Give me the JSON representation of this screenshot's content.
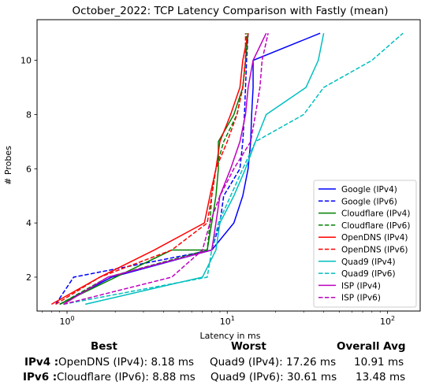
{
  "chart_data": {
    "type": "line",
    "title": "October_2022: TCP Latency Comparison with Fastly (mean)",
    "xlabel": "Latency in ms",
    "ylabel": "# Probes",
    "xscale": "log",
    "xlim": [
      0.65,
      160
    ],
    "ylim": [
      0.75,
      11.5
    ],
    "x_ticks": [
      {
        "value": 1,
        "label": "10^0"
      },
      {
        "value": 10,
        "label": "10^1"
      },
      {
        "value": 100,
        "label": "10^2"
      }
    ],
    "y_ticks": [
      2,
      4,
      6,
      8,
      10
    ],
    "legend_position": "lower-right",
    "grid": false,
    "series": [
      {
        "name": "Google (IPv4)",
        "color": "#0000ff",
        "dash": "solid",
        "x": [
          0.9,
          1.9,
          8.0,
          11.0,
          12.5,
          13.5,
          14.0,
          14.2,
          14.5,
          14.5,
          38.0
        ],
        "y": [
          1,
          2,
          3,
          4,
          5,
          6,
          7,
          8,
          9,
          10,
          11
        ]
      },
      {
        "name": "Google (IPv6)",
        "color": "#0000ff",
        "dash": "dashed",
        "x": [
          0.85,
          1.1,
          8.0,
          9.0,
          9.5,
          12.0,
          12.5,
          12.8,
          13.0,
          13.2,
          13.5
        ],
        "y": [
          1,
          2,
          3,
          4,
          5,
          6,
          7,
          8,
          9,
          10,
          11
        ]
      },
      {
        "name": "Cloudflare (IPv4)",
        "color": "#008000",
        "dash": "solid",
        "x": [
          0.9,
          4.5,
          7.5,
          8.0,
          8.5,
          8.8,
          8.8,
          11.0,
          12.5,
          13.0,
          13.5
        ],
        "y": [
          1,
          3,
          3,
          4,
          5,
          6,
          7,
          8,
          9,
          10,
          11
        ]
      },
      {
        "name": "Cloudflare (IPv6)",
        "color": "#008000",
        "dash": "dashed",
        "x": [
          0.9,
          1.8,
          7.5,
          7.8,
          8.0,
          8.5,
          9.5,
          11.5,
          12.5,
          13.0,
          13.2
        ],
        "y": [
          1,
          2,
          3,
          4,
          5,
          6,
          7,
          8,
          9,
          10,
          11
        ]
      },
      {
        "name": "OpenDNS (IPv4)",
        "color": "#ff0000",
        "dash": "solid",
        "x": [
          0.8,
          1.6,
          3.5,
          7.2,
          7.8,
          8.5,
          9.0,
          10.5,
          12.0,
          12.5,
          13.5
        ],
        "y": [
          1,
          2,
          3,
          4,
          5,
          6,
          7,
          8,
          9,
          10,
          11
        ]
      },
      {
        "name": "OpenDNS (IPv6)",
        "color": "#ff0000",
        "dash": "dashed",
        "x": [
          0.85,
          1.6,
          4.5,
          7.5,
          8.0,
          8.5,
          10.0,
          11.5,
          12.5,
          13.0,
          13.0
        ],
        "y": [
          1,
          2,
          3,
          4,
          5,
          6,
          7,
          8,
          9,
          10,
          11
        ]
      },
      {
        "name": "Quad9 (IPv4)",
        "color": "#00bfbf",
        "dash": "solid",
        "x": [
          1.3,
          7.0,
          8.5,
          9.0,
          11.0,
          13.0,
          15.0,
          17.5,
          31.0,
          37.0,
          40.0
        ],
        "y": [
          1,
          2,
          3,
          4,
          5,
          6,
          7,
          8,
          9,
          10,
          11
        ]
      },
      {
        "name": "Quad9 (IPv6)",
        "color": "#00bfbf",
        "dash": "dashed",
        "x": [
          0.95,
          7.5,
          8.0,
          8.8,
          10.5,
          12.5,
          15.0,
          30.0,
          40.0,
          80.0,
          125.0
        ],
        "y": [
          1,
          2,
          3,
          4,
          5,
          6,
          7,
          8,
          9,
          10,
          11
        ]
      },
      {
        "name": "ISP (IPv4)",
        "color": "#bf00bf",
        "dash": "solid",
        "x": [
          0.95,
          1.8,
          8.0,
          8.5,
          9.0,
          10.5,
          12.0,
          13.0,
          13.5,
          14.5,
          17.5
        ],
        "y": [
          1,
          2,
          3,
          4,
          5,
          6,
          7,
          8,
          9,
          10,
          11
        ]
      },
      {
        "name": "ISP (IPv6)",
        "color": "#bf00bf",
        "dash": "dashed",
        "x": [
          0.95,
          4.5,
          7.0,
          7.8,
          9.0,
          11.0,
          14.0,
          15.0,
          16.0,
          16.5,
          18.0
        ],
        "y": [
          1,
          2,
          3,
          4,
          5,
          6,
          7,
          8,
          9,
          10,
          11
        ]
      }
    ]
  },
  "summary": {
    "headers": {
      "best": "Best",
      "worst": "Worst",
      "overall_avg": "Overall Avg"
    },
    "rows": [
      {
        "label": "IPv4 :",
        "best": "OpenDNS (IPv4): 8.18 ms",
        "worst": "Quad9 (IPv4): 17.26 ms",
        "overall_avg": "10.91 ms"
      },
      {
        "label": "IPv6 :",
        "best": "Cloudflare (IPv6): 8.88 ms",
        "worst": "Quad9 (IPv6): 30.61 ms",
        "overall_avg": "13.48 ms"
      }
    ]
  }
}
